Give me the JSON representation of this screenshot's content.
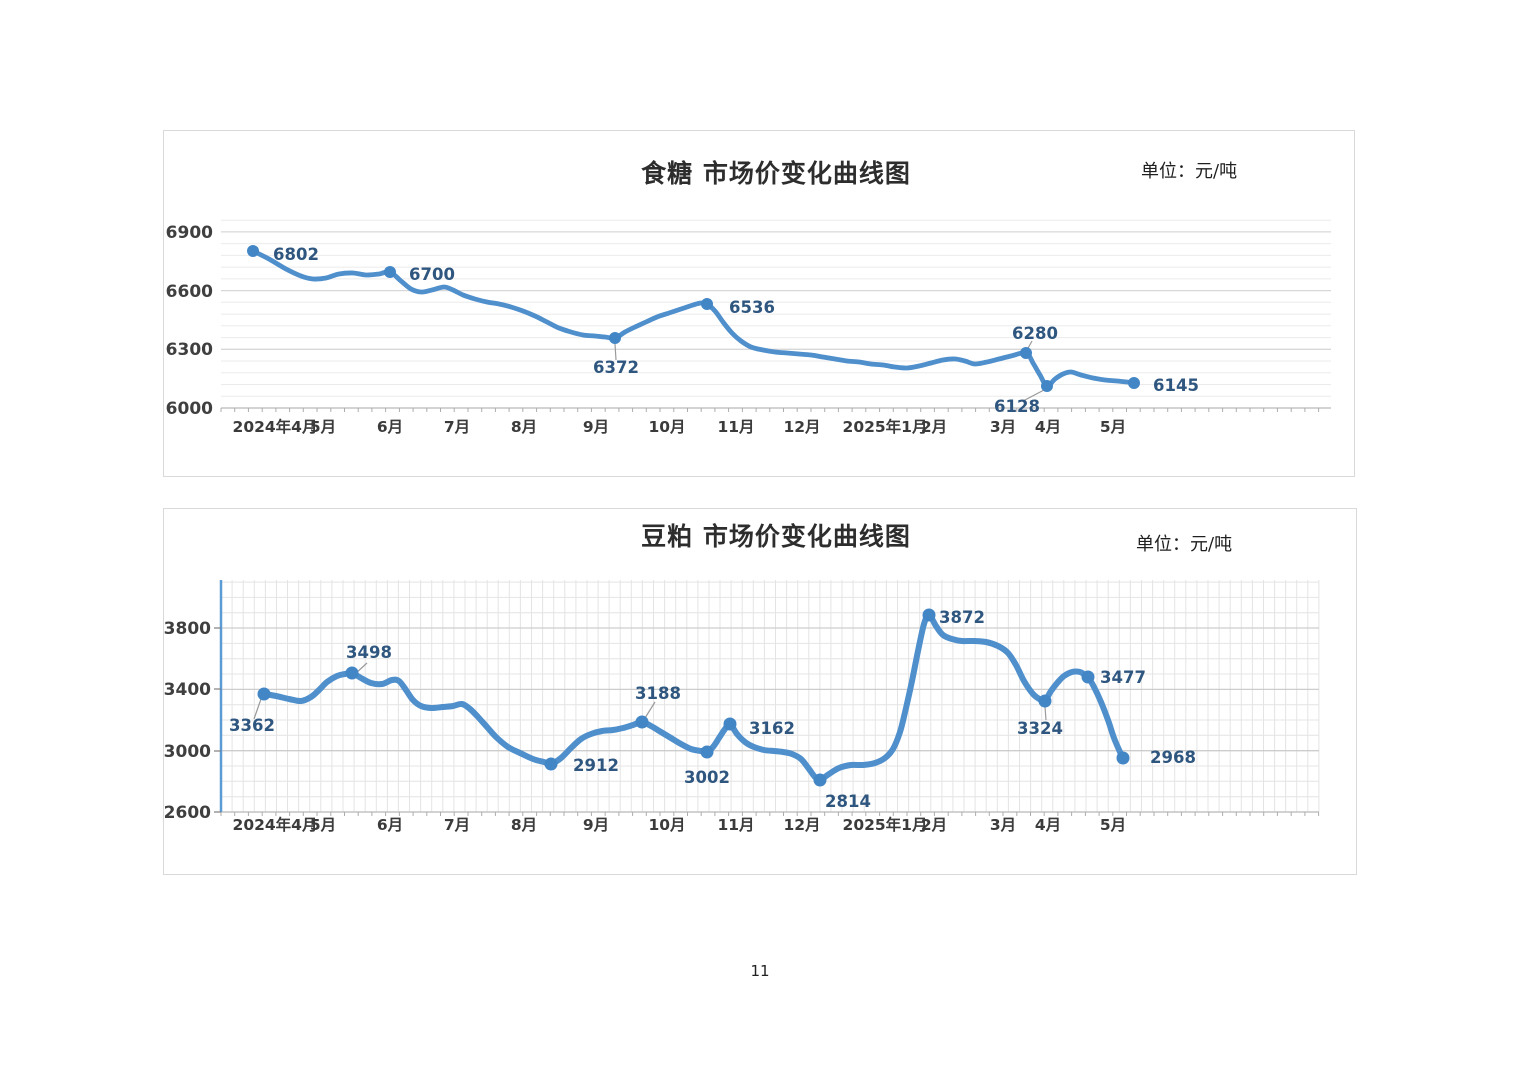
{
  "page": {
    "number": "11"
  },
  "chart_data": [
    {
      "type": "line",
      "title": "食糖 市场价变化曲线图",
      "unit_label": "单位：元/吨",
      "series_name": "食糖市场价",
      "ylabel": "",
      "xlabel": "",
      "ylim": [
        6000,
        6960
      ],
      "y_ticks": [
        "6900",
        "6600",
        "6300",
        "6000"
      ],
      "x_labels": [
        "2024年4月",
        "5月",
        "6月",
        "7月",
        "8月",
        "9月",
        "10月",
        "11月",
        "12月",
        "2025年1月",
        "2月",
        "3月",
        "4月",
        "5月"
      ],
      "labeled_points": [
        {
          "month": "2024年4月",
          "value": 6802
        },
        {
          "month": "2024年6月",
          "value": 6700
        },
        {
          "month": "2024年9月",
          "value": 6372
        },
        {
          "month": "2024年10月",
          "value": 6536
        },
        {
          "month": "2025年3月",
          "value": 6280
        },
        {
          "month": "2025年4月",
          "value": 6128
        },
        {
          "month": "2025年5月",
          "value": 6145
        }
      ],
      "line_color": "#4f8fcc",
      "marker_color": "#4386c6",
      "label_color": "#2e567f",
      "grid": "horizontal-minor-only",
      "legend": "none"
    },
    {
      "type": "line",
      "title": "豆粕 市场价变化曲线图",
      "unit_label": "单位：元/吨",
      "series_name": "豆粕市场价",
      "ylabel": "",
      "xlabel": "",
      "ylim": [
        2600,
        4120
      ],
      "y_ticks": [
        "3800",
        "3400",
        "3000",
        "2600"
      ],
      "x_labels": [
        "2024年4月",
        "5月",
        "6月",
        "7月",
        "8月",
        "9月",
        "10月",
        "11月",
        "12月",
        "2025年1月",
        "2月",
        "3月",
        "4月",
        "5月"
      ],
      "labeled_points": [
        {
          "month": "2024年4月",
          "value": 3362
        },
        {
          "month": "2024年5月",
          "value": 3498
        },
        {
          "month": "2024年8月",
          "value": 2912
        },
        {
          "month": "2024年9月",
          "value": 3188
        },
        {
          "month": "2024年10月",
          "value": 3002
        },
        {
          "month": "2024年11月",
          "value": 3162
        },
        {
          "month": "2024年12月",
          "value": 2814
        },
        {
          "month": "2025年2月",
          "value": 3872
        },
        {
          "month": "2025年4月",
          "value": 3324
        },
        {
          "month": "2025年4月下旬",
          "value": 3477
        },
        {
          "month": "2025年5月",
          "value": 2968
        }
      ],
      "line_color": "#4f8fcc",
      "marker_color": "#4386c6",
      "label_color": "#2e567f",
      "grid": "full-fine-grid",
      "legend": "none"
    }
  ]
}
